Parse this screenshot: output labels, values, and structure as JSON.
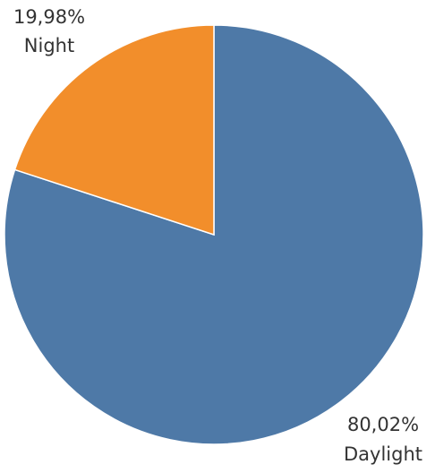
{
  "chart_data": {
    "type": "pie",
    "title": "",
    "slices": [
      {
        "label": "Daylight",
        "value": 80.02,
        "display": "80,02%",
        "color": "#4e79a7"
      },
      {
        "label": "Night",
        "value": 19.98,
        "display": "19,98%",
        "color": "#f28e2b"
      }
    ],
    "start_angle": "12 o'clock",
    "direction": "clockwise"
  }
}
